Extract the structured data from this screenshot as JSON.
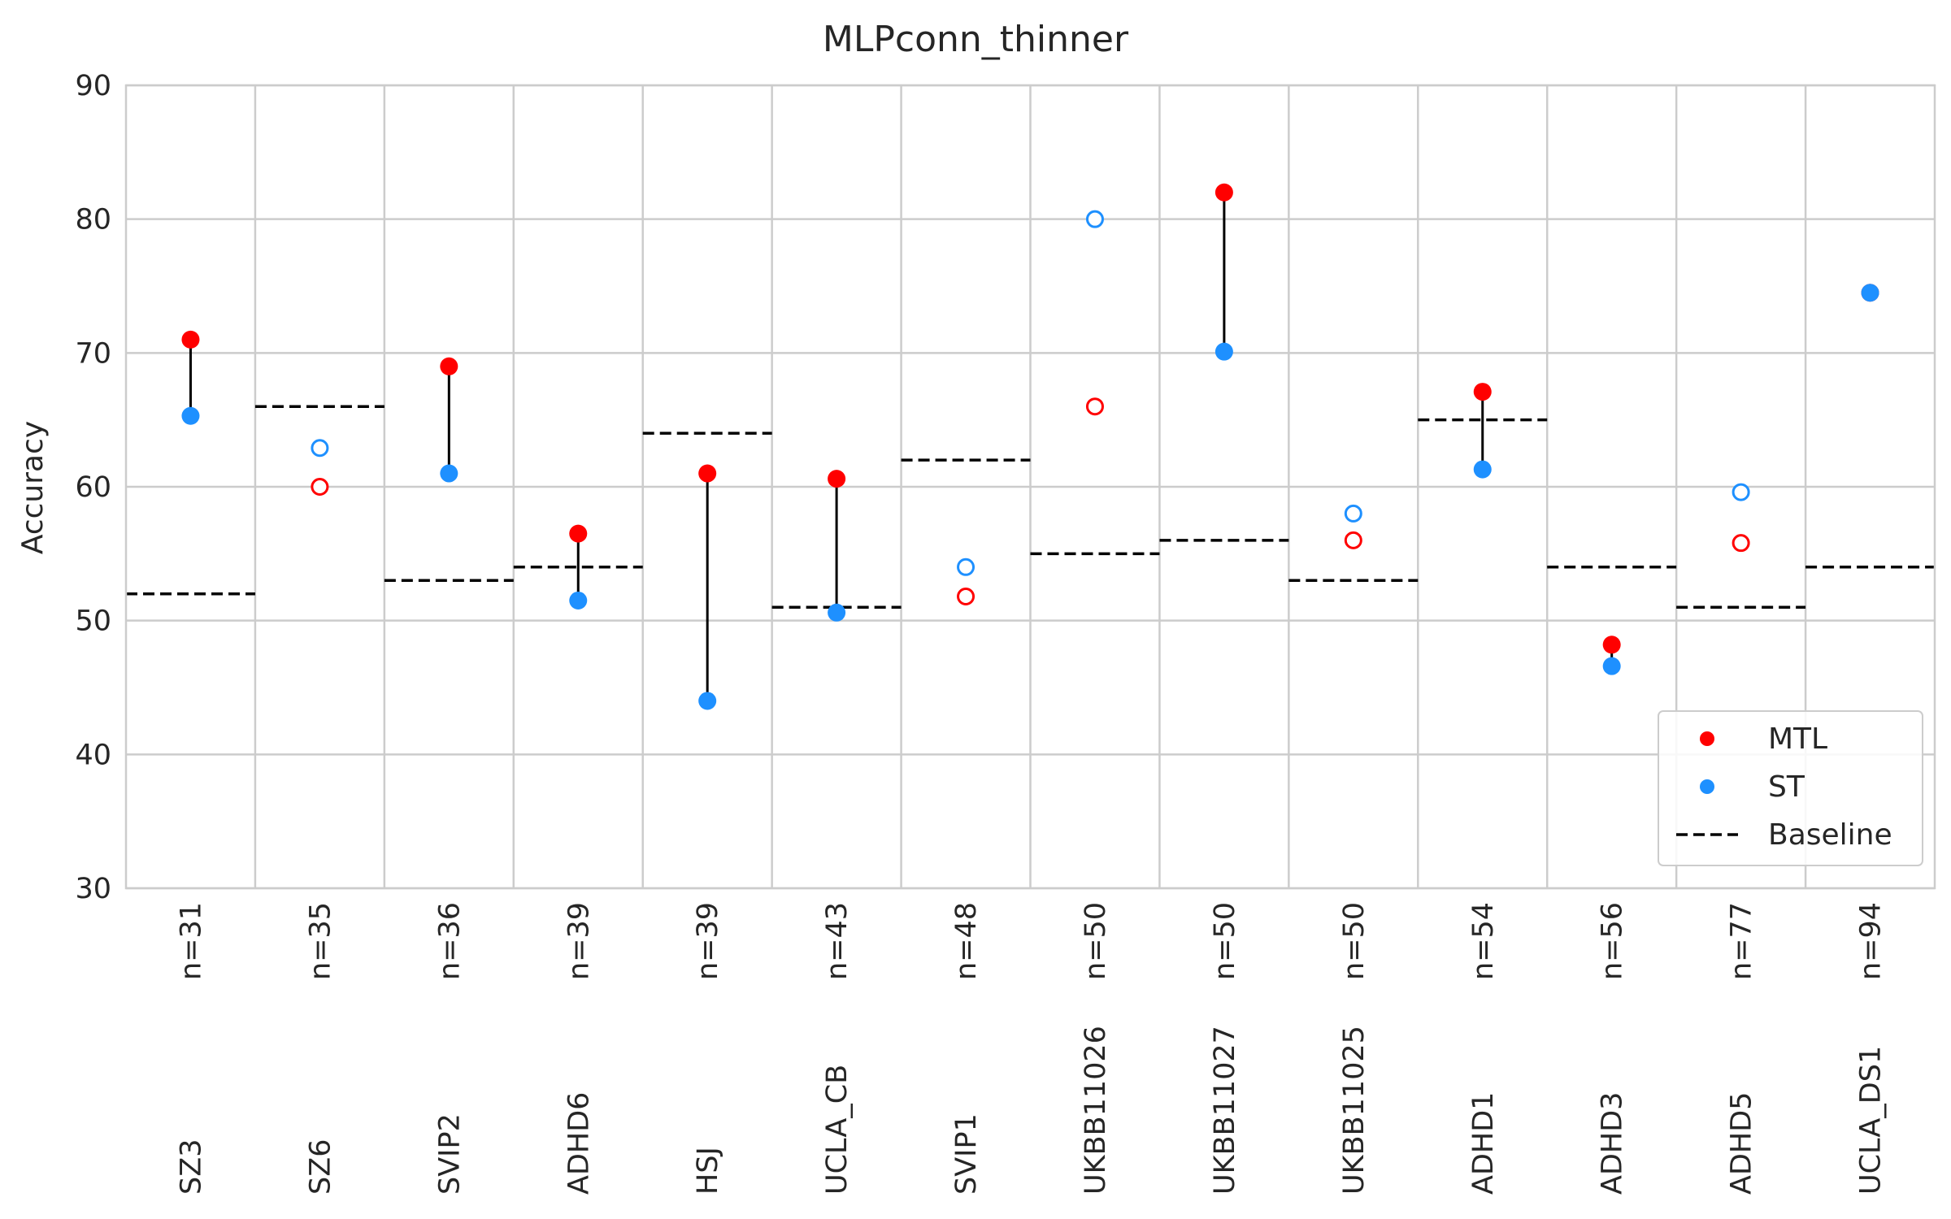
{
  "chart_data": {
    "type": "scatter",
    "title": "MLPconn_thinner",
    "xlabel": "",
    "ylabel": "Accuracy",
    "ylim": [
      30,
      90
    ],
    "yticks": [
      30,
      40,
      50,
      60,
      70,
      80,
      90
    ],
    "grid": true,
    "legend_position": "lower-right",
    "legend": [
      {
        "label": "MTL",
        "marker": "filled-circle",
        "color": "#ff0000"
      },
      {
        "label": "ST",
        "marker": "filled-circle",
        "color": "#1e90ff"
      },
      {
        "label": "Baseline",
        "marker": "dashed-line",
        "color": "#000000"
      }
    ],
    "colors": {
      "mtl": "#ff0000",
      "st": "#1e90ff",
      "baseline": "#000000",
      "connector": "#000000"
    },
    "categories": [
      "SZ3",
      "SZ6",
      "SVIP2",
      "ADHD6",
      "HSJ",
      "UCLA_CB",
      "SVIP1",
      "UKBB11026",
      "UKBB11027",
      "UKBB11025",
      "ADHD1",
      "ADHD3",
      "ADHD5",
      "UCLA_DS1"
    ],
    "n_labels": [
      "n=31",
      "n=35",
      "n=36",
      "n=39",
      "n=39",
      "n=43",
      "n=48",
      "n=50",
      "n=50",
      "n=50",
      "n=54",
      "n=56",
      "n=77",
      "n=94"
    ],
    "series": [
      {
        "name": "MTL",
        "values": [
          71.0,
          60.0,
          69.0,
          56.5,
          61.0,
          60.6,
          51.8,
          66.0,
          82.0,
          56.0,
          67.1,
          48.2,
          55.8,
          74.5
        ]
      },
      {
        "name": "ST",
        "values": [
          65.3,
          62.9,
          61.0,
          51.5,
          44.0,
          50.6,
          54.0,
          80.0,
          70.1,
          58.0,
          61.3,
          46.6,
          59.6,
          74.5
        ]
      },
      {
        "name": "Baseline",
        "values": [
          52.0,
          66.0,
          53.0,
          54.0,
          64.0,
          51.0,
          62.0,
          55.0,
          56.0,
          53.0,
          65.0,
          54.0,
          51.0,
          54.0
        ]
      }
    ],
    "mtl_filled": [
      true,
      false,
      true,
      true,
      true,
      true,
      false,
      false,
      true,
      false,
      true,
      true,
      false,
      true
    ],
    "st_filled": [
      true,
      false,
      true,
      true,
      true,
      true,
      false,
      false,
      true,
      false,
      true,
      true,
      false,
      true
    ],
    "connector_drawn": [
      true,
      false,
      true,
      true,
      true,
      true,
      false,
      false,
      true,
      false,
      true,
      true,
      false,
      false
    ]
  }
}
